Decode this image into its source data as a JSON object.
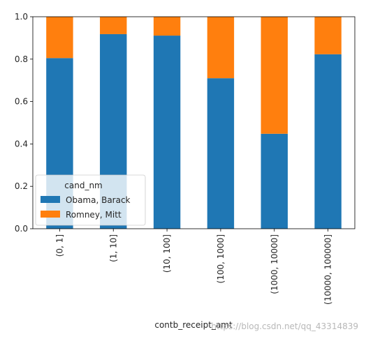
{
  "chart_data": {
    "type": "bar",
    "stacked": true,
    "categories": [
      "(0, 1]",
      "(1, 10]",
      "(10, 100]",
      "(100, 1000]",
      "(1000, 10000]",
      "(10000, 100000]"
    ],
    "series": [
      {
        "name": "Obama, Barack",
        "color": "#1f77b4",
        "values": [
          0.805,
          0.918,
          0.911,
          0.71,
          0.448,
          0.823
        ]
      },
      {
        "name": "Romney, Mitt",
        "color": "#ff7f0e",
        "values": [
          0.195,
          0.082,
          0.089,
          0.29,
          0.552,
          0.177
        ]
      }
    ],
    "title": "",
    "xlabel": "contb_receipt_amt",
    "ylabel": "",
    "ylim": [
      0,
      1.0
    ],
    "yticks": [
      "0.0",
      "0.2",
      "0.4",
      "0.6",
      "0.8",
      "1.0"
    ],
    "legend": {
      "title": "cand_nm",
      "placement": "lower-left"
    },
    "grid": false
  },
  "watermark": "https://blog.csdn.net/qq_43314839"
}
